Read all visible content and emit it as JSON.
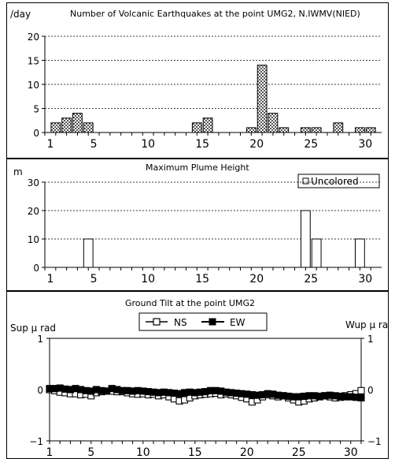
{
  "chart_data": [
    {
      "type": "bar",
      "title": "Number of Volcanic Earthquakes at the point UMG2, N.IWMV(NIED)",
      "ylabel": "/day",
      "ylim": [
        0,
        20
      ],
      "yticks": [
        "0",
        "5",
        "10",
        "15",
        "20"
      ],
      "xticks": [
        "1",
        "5",
        "10",
        "15",
        "20",
        "25",
        "30"
      ],
      "bar_fill": "#a6a6a6",
      "bar_pattern": "checkered",
      "x": [
        1,
        2,
        3,
        4,
        14,
        15,
        19,
        20,
        21,
        22,
        24,
        25,
        27,
        29,
        30
      ],
      "values": [
        2,
        3,
        4,
        2,
        2,
        3,
        1,
        14,
        4,
        1,
        1,
        1,
        2,
        1,
        1
      ]
    },
    {
      "type": "bar",
      "title": "Maximum Plume Height",
      "ylabel": "m",
      "ylim": [
        0,
        30
      ],
      "yticks": [
        "0",
        "10",
        "20",
        "30"
      ],
      "xticks": [
        "1",
        "5",
        "10",
        "15",
        "20",
        "25",
        "30"
      ],
      "legend": {
        "label": "Uncolored",
        "placement": "top-right"
      },
      "bar_fill": "#ffffff",
      "x": [
        4,
        24,
        25,
        29
      ],
      "values": [
        10,
        20,
        10,
        10
      ]
    },
    {
      "type": "line",
      "title": "Ground Tilt at the point UMG2",
      "ylabel_left": "Sup μ rad",
      "ylabel_right": "Wup μ rad",
      "ylim": [
        -1,
        1
      ],
      "yticks": [
        "−1",
        "0",
        "1"
      ],
      "xticks": [
        "1",
        "5",
        "10",
        "15",
        "20",
        "25",
        "30"
      ],
      "legend_placement": "top",
      "series": [
        {
          "name": "NS",
          "marker": "open-square",
          "x": [
            1,
            1.5,
            2,
            2.5,
            3,
            3.5,
            4,
            4.5,
            5,
            5.5,
            6,
            6.5,
            7,
            7.5,
            8,
            8.5,
            9,
            9.5,
            10,
            10.5,
            11,
            11.5,
            12,
            12.5,
            13,
            13.5,
            14,
            14.5,
            15,
            15.5,
            16,
            16.5,
            17,
            17.5,
            18,
            18.5,
            19,
            19.5,
            20,
            20.5,
            21,
            21.5,
            22,
            22.5,
            23,
            23.5,
            24,
            24.5,
            25,
            25.5,
            26,
            26.5,
            27,
            27.5,
            28,
            28.5,
            29,
            29.5,
            30,
            30.5,
            31
          ],
          "values": [
            0.0,
            -0.02,
            -0.05,
            -0.06,
            -0.08,
            -0.08,
            -0.1,
            -0.09,
            -0.12,
            -0.06,
            -0.04,
            -0.03,
            -0.03,
            -0.04,
            -0.04,
            -0.06,
            -0.08,
            -0.09,
            -0.08,
            -0.1,
            -0.09,
            -0.12,
            -0.1,
            -0.14,
            -0.18,
            -0.22,
            -0.2,
            -0.16,
            -0.12,
            -0.1,
            -0.09,
            -0.08,
            -0.07,
            -0.1,
            -0.08,
            -0.1,
            -0.12,
            -0.15,
            -0.18,
            -0.24,
            -0.2,
            -0.14,
            -0.1,
            -0.12,
            -0.14,
            -0.12,
            -0.16,
            -0.2,
            -0.24,
            -0.22,
            -0.18,
            -0.16,
            -0.14,
            -0.12,
            -0.14,
            -0.16,
            -0.15,
            -0.12,
            -0.1,
            -0.08,
            -0.02
          ]
        },
        {
          "name": "EW",
          "marker": "filled-square",
          "x": [
            1,
            1.5,
            2,
            2.5,
            3,
            3.5,
            4,
            4.5,
            5,
            5.5,
            6,
            6.5,
            7,
            7.5,
            8,
            8.5,
            9,
            9.5,
            10,
            10.5,
            11,
            11.5,
            12,
            12.5,
            13,
            13.5,
            14,
            14.5,
            15,
            15.5,
            16,
            16.5,
            17,
            17.5,
            18,
            18.5,
            19,
            19.5,
            20,
            20.5,
            21,
            21.5,
            22,
            22.5,
            23,
            23.5,
            24,
            24.5,
            25,
            25.5,
            26,
            26.5,
            27,
            27.5,
            28,
            28.5,
            29,
            29.5,
            30,
            30.5,
            31
          ],
          "values": [
            0.02,
            0.02,
            0.03,
            0.01,
            0.0,
            0.02,
            0.0,
            -0.02,
            -0.03,
            0.0,
            -0.02,
            -0.03,
            0.02,
            0.0,
            -0.02,
            -0.02,
            -0.03,
            -0.02,
            -0.03,
            -0.04,
            -0.05,
            -0.06,
            -0.05,
            -0.06,
            -0.07,
            -0.08,
            -0.06,
            -0.05,
            -0.06,
            -0.05,
            -0.04,
            -0.02,
            -0.02,
            -0.03,
            -0.05,
            -0.06,
            -0.07,
            -0.08,
            -0.09,
            -0.1,
            -0.11,
            -0.1,
            -0.08,
            -0.09,
            -0.11,
            -0.12,
            -0.13,
            -0.14,
            -0.14,
            -0.13,
            -0.12,
            -0.12,
            -0.13,
            -0.12,
            -0.11,
            -0.12,
            -0.13,
            -0.14,
            -0.14,
            -0.15,
            -0.16
          ]
        }
      ]
    }
  ]
}
